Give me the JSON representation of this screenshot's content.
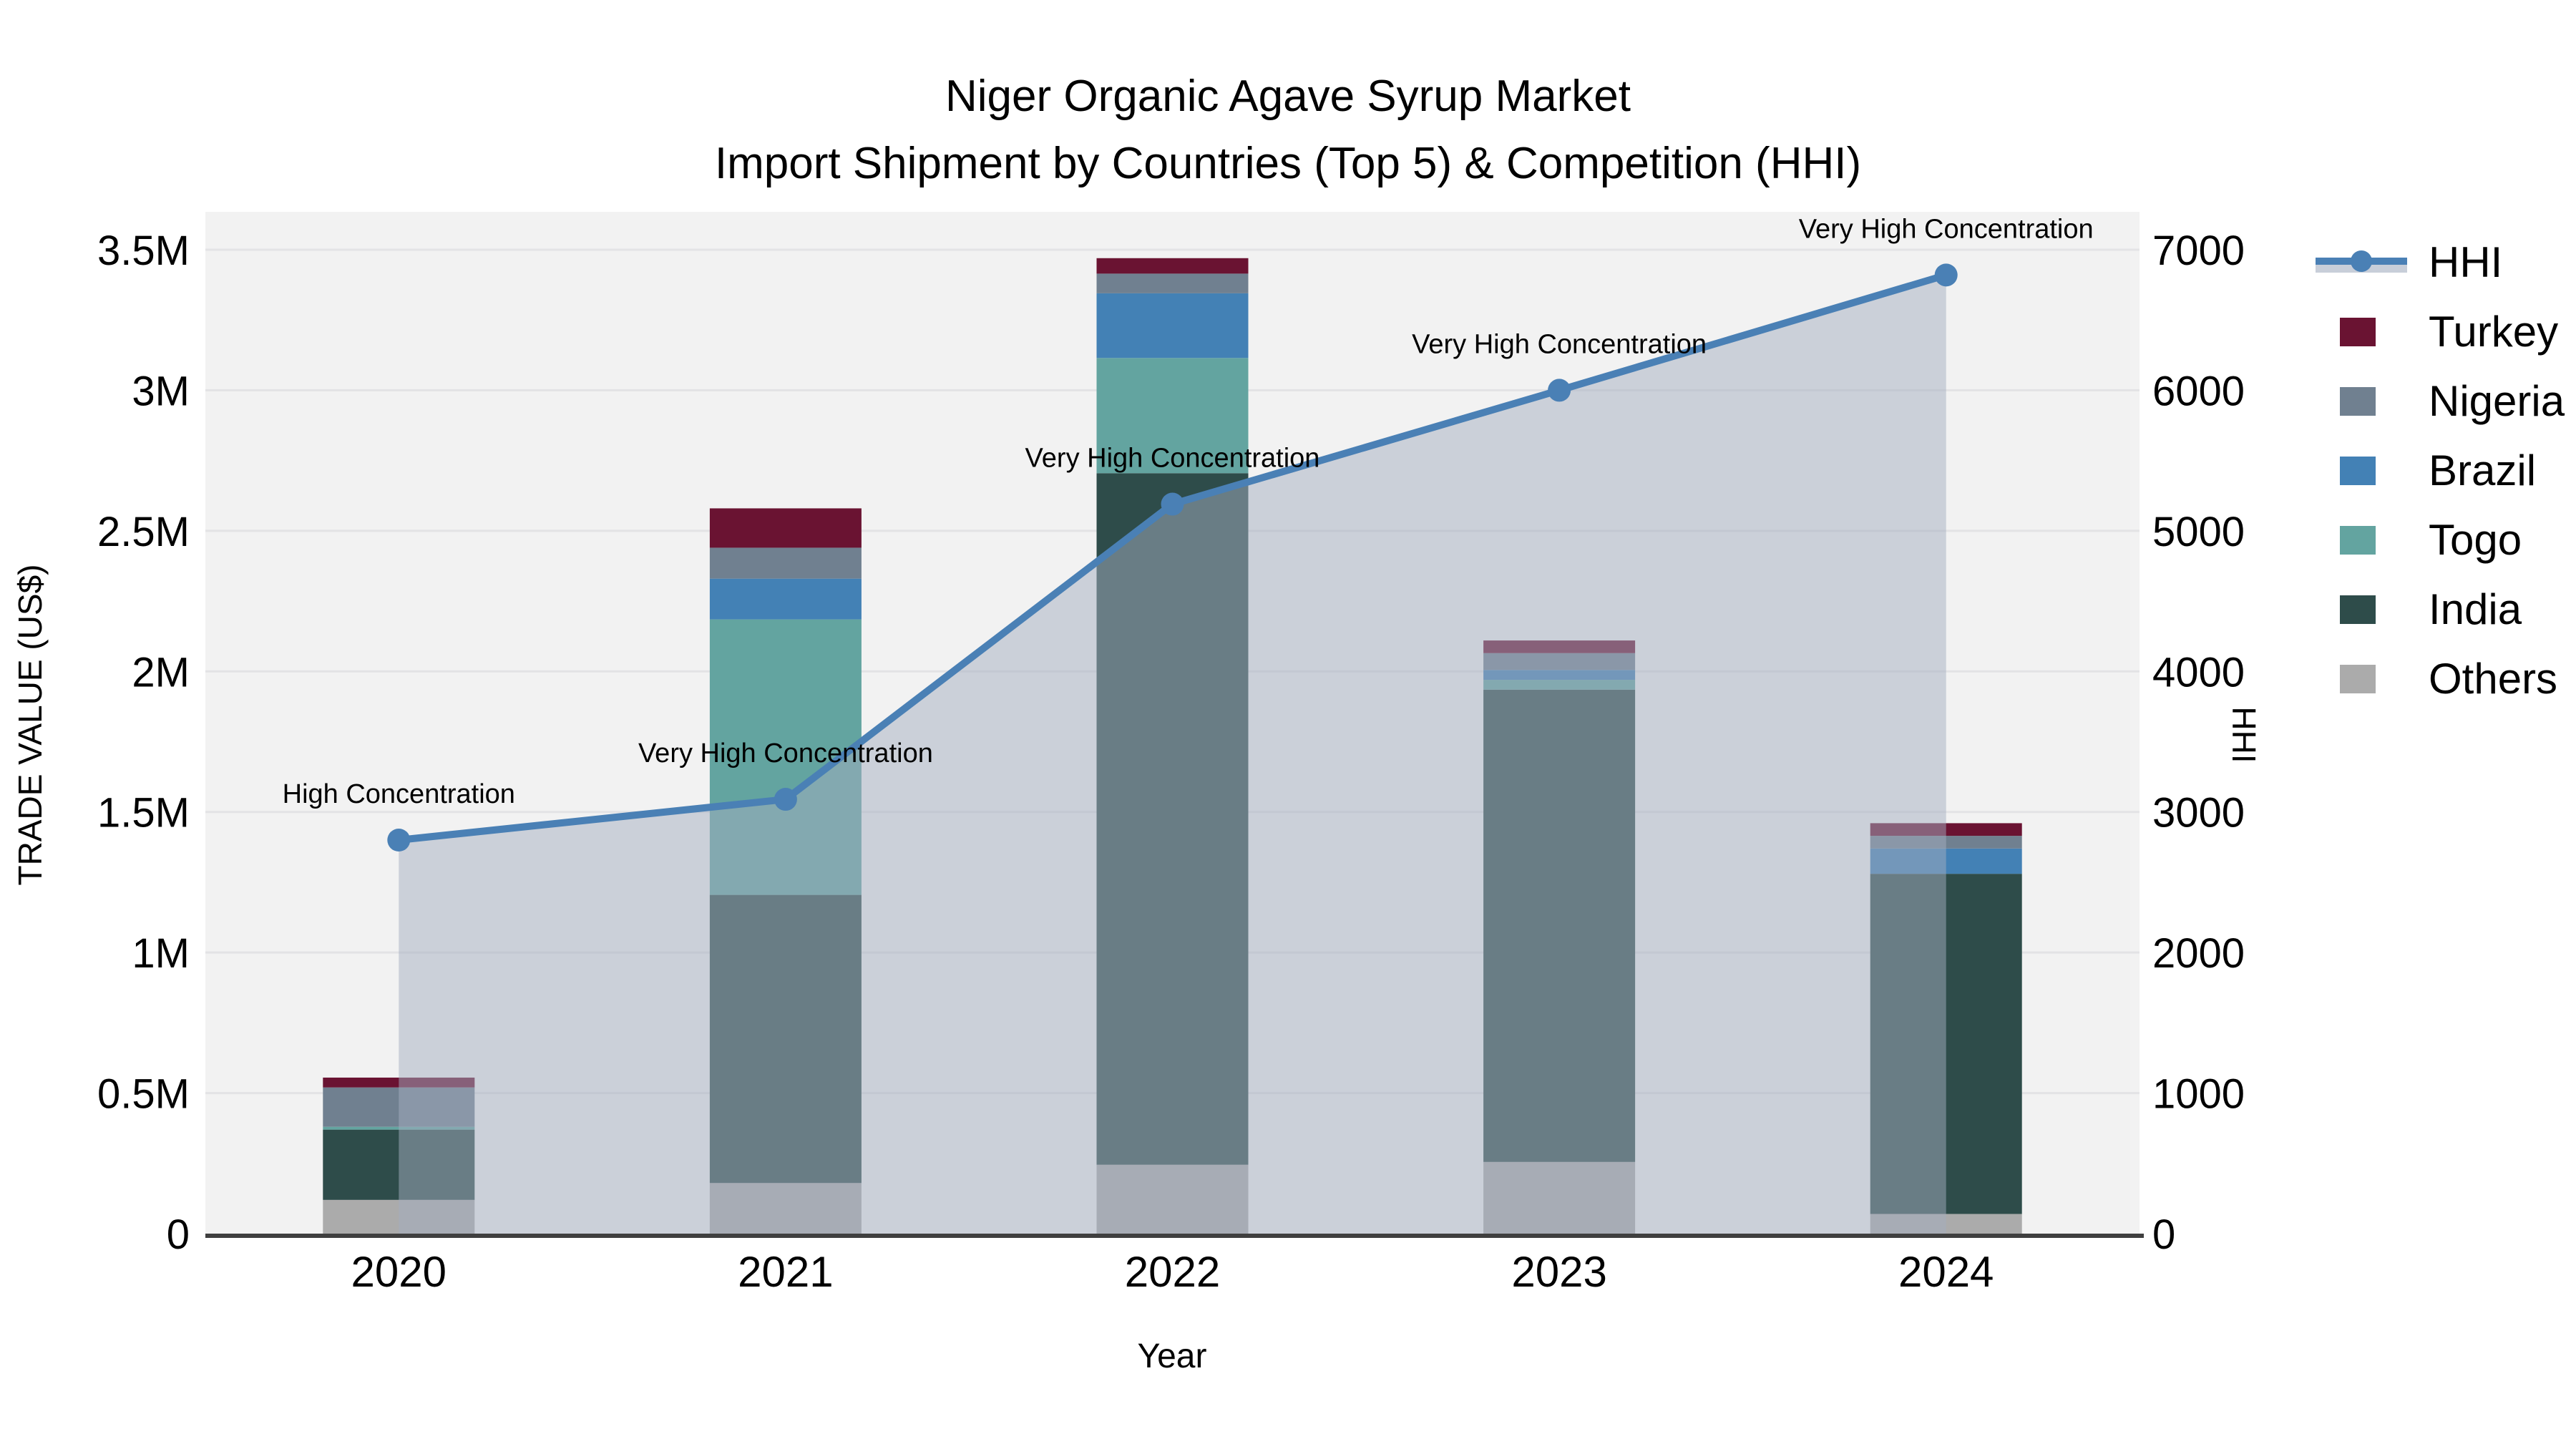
{
  "title": {
    "line1": "Niger Organic Agave Syrup Market",
    "line2": "Import Shipment by Countries (Top 5) & Competition (HHI)"
  },
  "axes": {
    "x": {
      "title": "Year",
      "categories": [
        "2020",
        "2021",
        "2022",
        "2023",
        "2024"
      ]
    },
    "y_left": {
      "title": "TRADE VALUE (US$)",
      "max": 3500000,
      "ticks": [
        {
          "value": 0,
          "label": "0"
        },
        {
          "value": 500000,
          "label": "0.5M"
        },
        {
          "value": 1000000,
          "label": "1M"
        },
        {
          "value": 1500000,
          "label": "1.5M"
        },
        {
          "value": 2000000,
          "label": "2M"
        },
        {
          "value": 2500000,
          "label": "2.5M"
        },
        {
          "value": 3000000,
          "label": "3M"
        },
        {
          "value": 3500000,
          "label": "3.5M"
        }
      ]
    },
    "y_right": {
      "title": "HHI",
      "max": 7000,
      "ticks": [
        {
          "value": 0,
          "label": "0"
        },
        {
          "value": 1000,
          "label": "1000"
        },
        {
          "value": 2000,
          "label": "2000"
        },
        {
          "value": 3000,
          "label": "3000"
        },
        {
          "value": 4000,
          "label": "4000"
        },
        {
          "value": 5000,
          "label": "5000"
        },
        {
          "value": 6000,
          "label": "6000"
        },
        {
          "value": 7000,
          "label": "7000"
        }
      ]
    }
  },
  "legend": {
    "items": [
      "HHI",
      "Turkey",
      "Nigeria",
      "Brazil",
      "Togo",
      "India",
      "Others"
    ]
  },
  "colors": {
    "plot_background": "#F2F2F2",
    "gridline": "#E3E3E5",
    "axis_line": "#3F3F3F",
    "hhi_line": "#4A80B5",
    "hhi_area_fill": "rgba(164,173,191,0.5)",
    "annotation_text": "#000000"
  },
  "chart_data": {
    "type": "combo",
    "bar_mode": "stacked",
    "value_unit": "US$",
    "categories": [
      "2020",
      "2021",
      "2022",
      "2023",
      "2024"
    ],
    "bar_series": [
      {
        "name": "Turkey",
        "color": "#6A1332",
        "values": [
          35000,
          140000,
          55000,
          45000,
          45000
        ]
      },
      {
        "name": "Nigeria",
        "color": "#708090",
        "values": [
          140000,
          110000,
          70000,
          60000,
          45000
        ]
      },
      {
        "name": "Brazil",
        "color": "#4381B5",
        "values": [
          0,
          145000,
          230000,
          35000,
          90000
        ]
      },
      {
        "name": "Togo",
        "color": "#63A4A0",
        "values": [
          10000,
          980000,
          410000,
          35000,
          0
        ]
      },
      {
        "name": "India",
        "color": "#2E4C4A",
        "values": [
          250000,
          1025000,
          2460000,
          1680000,
          1210000
        ]
      },
      {
        "name": "Others",
        "color": "#ABABAB",
        "values": [
          120000,
          180000,
          245000,
          255000,
          70000
        ]
      }
    ],
    "bar_totals": [
      555000,
      2580000,
      3470000,
      2110000,
      1460000
    ],
    "line_series": {
      "name": "HHI",
      "axis": "right",
      "values": [
        2800,
        3090,
        5190,
        6000,
        6820
      ],
      "has_area_fill": true,
      "has_markers": true
    },
    "annotations": [
      {
        "category": "2020",
        "text": "High Concentration"
      },
      {
        "category": "2021",
        "text": "Very High Concentration"
      },
      {
        "category": "2022",
        "text": "Very High Concentration"
      },
      {
        "category": "2023",
        "text": "Very High Concentration"
      },
      {
        "category": "2024",
        "text": "Very High Concentration"
      }
    ]
  }
}
